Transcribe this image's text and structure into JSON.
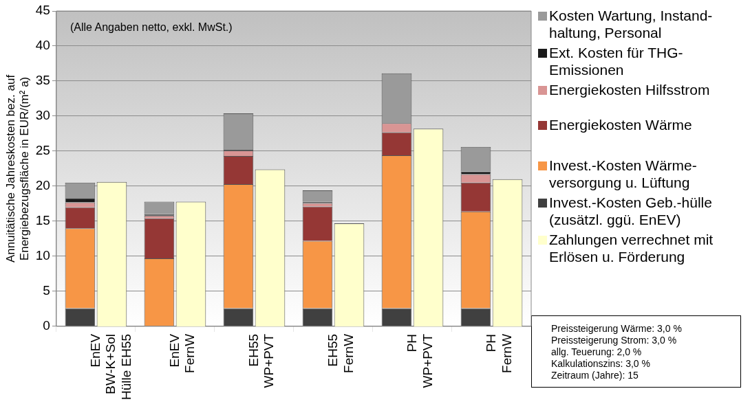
{
  "chart_data": [
    {
      "type": "bar",
      "stacked": true,
      "ylabel": "Annuitätische Jahreskosten bez. auf\nEnergiebezugsfläche in EUR/(m² a)",
      "categories": [
        "EnEV\nBW-K+Sol\nHülle EH55",
        "EnEV\nFernW",
        "EH55\nWP+PVT",
        "EH55\nFernW",
        "PH\nWP+PVT",
        "PH\nFernW"
      ],
      "series": [
        {
          "name": "Invest.-Kosten Geb.-hülle\n(zusätzl. ggü. EnEV)",
          "color": "#404040",
          "values": [
            2.6,
            0,
            2.6,
            2.6,
            2.6,
            2.6
          ]
        },
        {
          "name": "Invest.-Kosten Wärme-\nversorgung u. Lüftung",
          "color": "#f79646",
          "values": [
            11.4,
            9.7,
            17.7,
            9.6,
            21.8,
            13.8
          ]
        },
        {
          "name": "Energiekosten Wärme",
          "color": "#953735",
          "values": [
            3.0,
            5.7,
            4.0,
            4.9,
            3.3,
            4.1
          ]
        },
        {
          "name": "Energiekosten Hilfsstrom",
          "color": "#d99594",
          "values": [
            0.7,
            0.4,
            0.8,
            0.5,
            1.3,
            1.2
          ]
        },
        {
          "name": "Ext. Kosten für THG-\nEmissionen",
          "color": "#1a1a1a",
          "values": [
            0.6,
            0.2,
            0.1,
            0.2,
            0,
            0.4
          ]
        },
        {
          "name": "Kosten Wartung, Instand-\nhaltung, Personal",
          "color": "#9a9a9a",
          "values": [
            2.2,
            1.8,
            5.2,
            1.6,
            7.1,
            3.5
          ]
        }
      ],
      "ylim": [
        0,
        45
      ],
      "yticks": [
        0,
        5,
        10,
        15,
        20,
        25,
        30,
        35,
        40,
        45
      ],
      "grid": "y",
      "legend": "right",
      "annotations": [
        "(Alle Angaben netto, exkl. MwSt.)",
        "Preissteigerung Wärme: 3,0 %",
        "Preissteigerung Strom: 3,0 %",
        "allg. Teuerung: 2,0 %",
        "Kalkulationszins: 3,0 %",
        "Zeitraum (Jahre): 15"
      ]
    },
    {
      "type": "bar",
      "categories": [
        null,
        null,
        null,
        null,
        null,
        null
      ],
      "series": [
        {
          "name": "Zahlungen verrechnet mit\nErlösen u. Förderung",
          "color": "#ffffcc",
          "values": [
            20.6,
            17.8,
            22.4,
            14.7,
            28.2,
            21.0
          ]
        }
      ],
      "ylim": [
        0,
        45
      ],
      "yticks": [
        0,
        5,
        10,
        15,
        20,
        25,
        30,
        35,
        40,
        45
      ],
      "legend": "right",
      "tick_labels": false
    }
  ]
}
